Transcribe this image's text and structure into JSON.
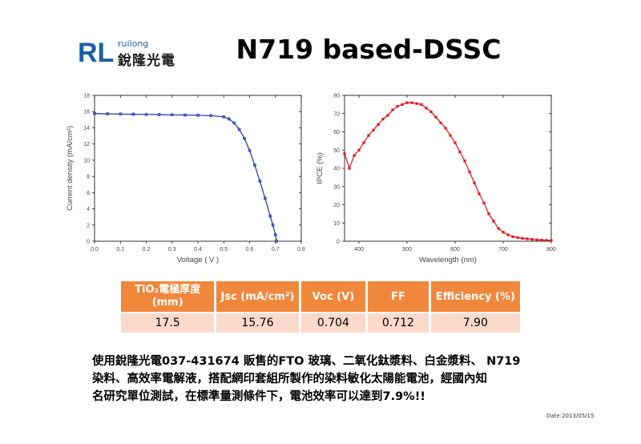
{
  "logo": {
    "mark": "RL",
    "small": "ruilong",
    "big": "銳隆光電",
    "color_blue": "#1d5fa6"
  },
  "title": "N719 based-DSSC",
  "chart_data": [
    {
      "type": "line",
      "title": "",
      "xlabel": "Voltage ( V )",
      "ylabel": "Current density (mA/cm²)",
      "xlim": [
        0.0,
        0.8
      ],
      "ylim": [
        0,
        18
      ],
      "x_ticks": [
        "0.0",
        "0.1",
        "0.2",
        "0.3",
        "0.4",
        "0.5",
        "0.6",
        "0.7",
        "0.8"
      ],
      "y_ticks": [
        "0",
        "2",
        "4",
        "6",
        "8",
        "10",
        "12",
        "14",
        "16",
        "18"
      ],
      "series": [
        {
          "color": "#1f2eb5",
          "x": [
            0.0,
            0.05,
            0.1,
            0.15,
            0.2,
            0.25,
            0.3,
            0.35,
            0.4,
            0.45,
            0.5,
            0.52,
            0.54,
            0.56,
            0.58,
            0.6,
            0.62,
            0.64,
            0.66,
            0.68,
            0.69,
            0.7,
            0.704
          ],
          "y": [
            15.76,
            15.72,
            15.7,
            15.67,
            15.65,
            15.63,
            15.6,
            15.58,
            15.55,
            15.5,
            15.35,
            15.1,
            14.6,
            13.8,
            12.7,
            11.2,
            9.4,
            7.4,
            5.3,
            3.1,
            2.0,
            0.8,
            0.0
          ]
        }
      ]
    },
    {
      "type": "line",
      "title": "",
      "xlabel": "Wavelength (nm)",
      "ylabel": "IPCE (%)",
      "xlim": [
        370,
        800
      ],
      "ylim": [
        0,
        80
      ],
      "x_ticks": [
        "400",
        "500",
        "600",
        "700",
        "800"
      ],
      "y_ticks": [
        "0",
        "10",
        "20",
        "30",
        "40",
        "50",
        "60",
        "70",
        "80"
      ],
      "series": [
        {
          "color": "#e8101a",
          "x": [
            370,
            380,
            390,
            400,
            410,
            420,
            430,
            440,
            450,
            460,
            470,
            480,
            490,
            500,
            510,
            520,
            530,
            540,
            550,
            560,
            570,
            580,
            590,
            600,
            610,
            620,
            630,
            640,
            650,
            660,
            670,
            680,
            690,
            700,
            710,
            720,
            730,
            740,
            750,
            760,
            770,
            780,
            790,
            800
          ],
          "y": [
            48,
            40,
            47,
            50,
            54,
            58,
            61,
            64,
            67,
            69,
            72,
            74,
            75,
            76,
            76,
            75.5,
            75,
            73,
            71,
            68,
            65,
            62,
            58,
            54,
            49,
            44,
            38,
            32,
            26,
            21,
            15,
            11,
            7,
            5,
            3.5,
            2.5,
            2,
            1.6,
            1.3,
            1,
            0.8,
            0.6,
            0.5,
            0.4
          ]
        }
      ]
    }
  ],
  "table": {
    "headers": [
      "TiO₂電極厚度\n(mm)",
      "Jsc (mA/cm²)",
      "Voc (V)",
      "FF",
      "Efficiency (%)"
    ],
    "row": [
      "17.5",
      "15.76",
      "0.704",
      "0.712",
      "7.90"
    ],
    "header_color": "#f0873b",
    "row_color": "#fbd9cb"
  },
  "paragraph": [
    "使用銳隆光電037-431674 販售的FTO 玻璃、二氧化鈦漿料、白金漿料、 N719",
    "染料、高效率電解液，搭配網印套組所製作的染料敏化太陽能電池，經國內知",
    "名研究單位測試，在標準量測條件下，電池效率可以達到7.9%!!"
  ],
  "date": "Date:2013/05/15"
}
